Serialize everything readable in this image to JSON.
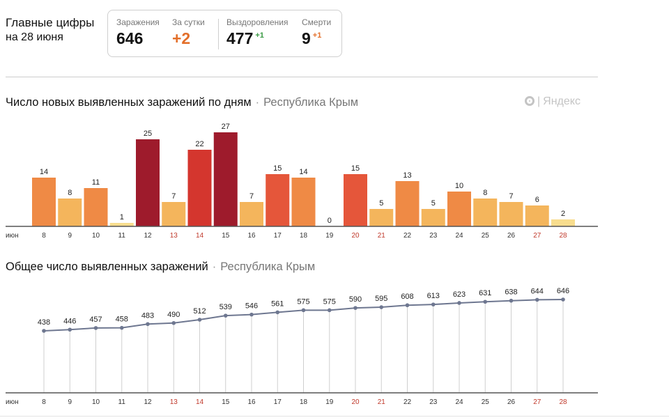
{
  "header": {
    "title_line1": "Главные цифры",
    "title_line2": "на 28 июня"
  },
  "stats": {
    "infections": {
      "label": "Заражения",
      "value": "646"
    },
    "daily": {
      "label": "За сутки",
      "value": "+2"
    },
    "recoveries": {
      "label": "Выздоровления",
      "value": "477",
      "delta": "+1"
    },
    "deaths": {
      "label": "Смерти",
      "value": "9",
      "delta": "+1"
    }
  },
  "brand": {
    "separator": "|",
    "name": "Яндекс"
  },
  "colors": {
    "axis": "#555555",
    "weekend_label": "#c0392b",
    "line": "#6e7790",
    "bar_scale": [
      "#f8dd8e",
      "#f4b55c",
      "#ef8a45",
      "#e5563a",
      "#d4362e",
      "#9e1b2c"
    ]
  },
  "chart_data": [
    {
      "type": "bar",
      "title": "Число новых выявленных заражений по дням",
      "region": "Республика Крым",
      "month_label": "июн",
      "categories": [
        "8",
        "9",
        "10",
        "11",
        "12",
        "13",
        "14",
        "15",
        "16",
        "17",
        "18",
        "19",
        "20",
        "21",
        "22",
        "23",
        "24",
        "25",
        "26",
        "27",
        "28"
      ],
      "weekend_categories": [
        "13",
        "14",
        "20",
        "21",
        "27",
        "28"
      ],
      "values": [
        14,
        8,
        11,
        1,
        25,
        7,
        22,
        27,
        7,
        15,
        14,
        0,
        15,
        5,
        13,
        5,
        10,
        8,
        7,
        6,
        2
      ],
      "ylim": [
        0,
        27
      ],
      "grid": false
    },
    {
      "type": "line",
      "title": "Общее число выявленных заражений",
      "region": "Республика Крым",
      "month_label": "июн",
      "categories": [
        "8",
        "9",
        "10",
        "11",
        "12",
        "13",
        "14",
        "15",
        "16",
        "17",
        "18",
        "19",
        "20",
        "21",
        "22",
        "23",
        "24",
        "25",
        "26",
        "27",
        "28"
      ],
      "weekend_categories": [
        "13",
        "14",
        "20",
        "21",
        "27",
        "28"
      ],
      "values": [
        438,
        446,
        457,
        458,
        483,
        490,
        512,
        539,
        546,
        561,
        575,
        575,
        590,
        595,
        608,
        613,
        623,
        631,
        638,
        644,
        646
      ],
      "ylim": [
        0,
        646
      ],
      "grid": false
    }
  ]
}
